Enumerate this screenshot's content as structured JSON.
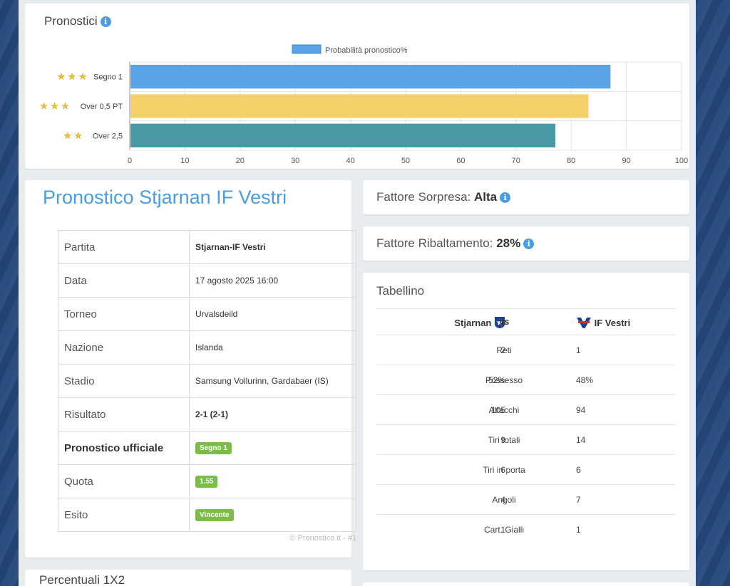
{
  "pronostici": {
    "title": "Pronostici",
    "chart_data": {
      "type": "bar",
      "orientation": "horizontal",
      "categories": [
        "Segno 1",
        "Over 0,5 PT",
        "Over 2,5"
      ],
      "stars": [
        3,
        3,
        2
      ],
      "series": [
        {
          "name": "Probabilità pronostico%",
          "values": [
            87,
            83,
            77
          ]
        }
      ],
      "bar_colors": [
        "#5aa4e6",
        "#f5cf6a",
        "#4a9aa5"
      ],
      "xlim": [
        0,
        100
      ],
      "x_ticks": [
        "0",
        "10",
        "20",
        "30",
        "40",
        "50",
        "60",
        "70",
        "80",
        "90",
        "100"
      ],
      "grid": true,
      "legend": "top"
    }
  },
  "match": {
    "title": "Pronostico Stjarnan IF Vestri",
    "rows": [
      {
        "key": "Partita",
        "value": "Stjarnan-IF Vestri"
      },
      {
        "key": "Data",
        "value": "17 agosto 2025 16:00"
      },
      {
        "key": "Torneo",
        "value": "Urvalsdeild"
      },
      {
        "key": "Nazione",
        "value": "Islanda"
      },
      {
        "key": "Stadio",
        "value": "Samsung Vollurinn, Gardabaer (IS)"
      },
      {
        "key": "Risultato",
        "value": "2-1 (2-1)"
      },
      {
        "key": "Pronostico ufficiale",
        "value": "Segno 1"
      },
      {
        "key": "Quota",
        "value": "1.55"
      },
      {
        "key": "Esito",
        "value": "Vincente"
      }
    ],
    "credit": "© Pronostico.it - #1"
  },
  "fattore_sorpresa": {
    "label": "Fattore Sorpresa:",
    "value": "Alta"
  },
  "fattore_ribaltamento": {
    "label": "Fattore Ribaltamento:",
    "value": "28%"
  },
  "tabellino": {
    "title": "Tabellino",
    "home": "Stjarnan",
    "vs": "vs",
    "away": "IF Vestri",
    "stats": [
      {
        "home": "2",
        "name": "Reti",
        "away": "1"
      },
      {
        "home": "52%",
        "name": "Possesso",
        "away": "48%"
      },
      {
        "home": "105",
        "name": "Attacchi",
        "away": "94"
      },
      {
        "home": "9",
        "name": "Tiri totali",
        "away": "14"
      },
      {
        "home": "6",
        "name": "Tiri in porta",
        "away": "6"
      },
      {
        "home": "4",
        "name": "Angoli",
        "away": "7"
      },
      {
        "home": "1",
        "name": "Cart. Gialli",
        "away": "1"
      }
    ]
  },
  "percentuali": {
    "title": "Percentuali 1X2"
  },
  "colors": {
    "accent": "#4a9de0",
    "badge": "#7cbd4a"
  }
}
